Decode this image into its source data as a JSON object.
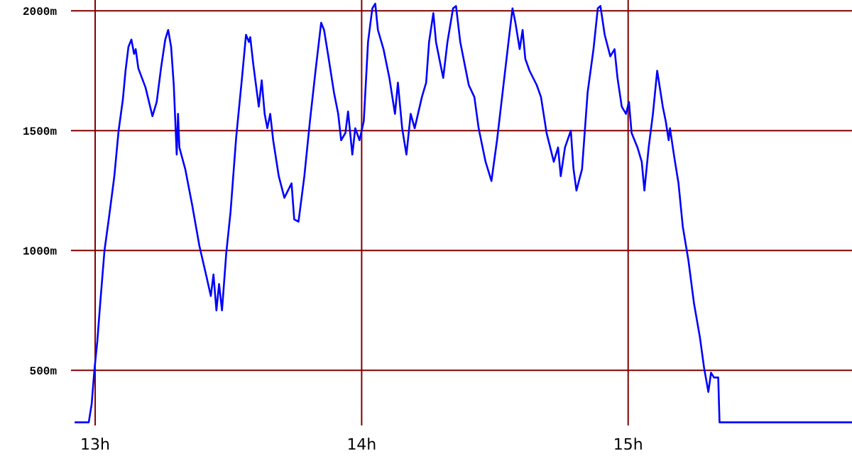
{
  "chart_data": {
    "type": "line",
    "xlim": [
      12.92,
      15.84
    ],
    "ylim": [
      270,
      2045
    ],
    "xticks": [
      {
        "value": 13,
        "label": "13h"
      },
      {
        "value": 14,
        "label": "14h"
      },
      {
        "value": 15,
        "label": "15h"
      }
    ],
    "yticks": [
      {
        "value": 500,
        "label": "500m"
      },
      {
        "value": 1000,
        "label": "1000m"
      },
      {
        "value": 1500,
        "label": "1500m"
      },
      {
        "value": 2000,
        "label": "2000m"
      }
    ],
    "grid": true,
    "marker": "none",
    "line_style": "solid",
    "series": [
      {
        "color": "#0000ff",
        "x": [
          12.923,
          12.976,
          12.987,
          12.997,
          13.008,
          13.019,
          13.035,
          13.051,
          13.072,
          13.088,
          13.104,
          13.114,
          13.125,
          13.136,
          13.146,
          13.152,
          13.162,
          13.189,
          13.215,
          13.231,
          13.247,
          13.263,
          13.274,
          13.285,
          13.295,
          13.306,
          13.311,
          13.316,
          13.338,
          13.364,
          13.391,
          13.418,
          13.434,
          13.444,
          13.455,
          13.465,
          13.476,
          13.492,
          13.508,
          13.529,
          13.551,
          13.566,
          13.577,
          13.582,
          13.593,
          13.614,
          13.625,
          13.636,
          13.646,
          13.657,
          13.668,
          13.689,
          13.71,
          13.737,
          13.747,
          13.763,
          13.785,
          13.806,
          13.827,
          13.848,
          13.859,
          13.875,
          13.896,
          13.912,
          13.923,
          13.939,
          13.949,
          13.965,
          13.976,
          13.992,
          14.008,
          14.024,
          14.04,
          14.051,
          14.061,
          14.082,
          14.104,
          14.125,
          14.136,
          14.152,
          14.168,
          14.184,
          14.199,
          14.226,
          14.242,
          14.253,
          14.269,
          14.279,
          14.295,
          14.306,
          14.322,
          14.343,
          14.354,
          14.37,
          14.402,
          14.423,
          14.439,
          14.465,
          14.487,
          14.508,
          14.529,
          14.551,
          14.566,
          14.577,
          14.593,
          14.604,
          14.614,
          14.63,
          14.657,
          14.673,
          14.694,
          14.721,
          14.737,
          14.747,
          14.763,
          14.785,
          14.795,
          14.806,
          14.827,
          14.848,
          14.87,
          14.886,
          14.896,
          14.912,
          14.933,
          14.949,
          14.96,
          14.976,
          14.992,
          15.003,
          15.013,
          15.035,
          15.051,
          15.061,
          15.077,
          15.093,
          15.109,
          15.13,
          15.141,
          15.152,
          15.157,
          15.173,
          15.189,
          15.205,
          15.226,
          15.247,
          15.269,
          15.285,
          15.301,
          15.311,
          15.322,
          15.338,
          15.343,
          15.84
        ],
        "values": [
          283,
          283,
          360,
          500,
          620,
          780,
          1000,
          1130,
          1310,
          1500,
          1630,
          1750,
          1850,
          1880,
          1820,
          1840,
          1760,
          1680,
          1560,
          1620,
          1760,
          1880,
          1920,
          1850,
          1690,
          1400,
          1570,
          1430,
          1340,
          1190,
          1020,
          890,
          810,
          900,
          750,
          860,
          750,
          990,
          1160,
          1470,
          1720,
          1900,
          1870,
          1890,
          1780,
          1600,
          1710,
          1570,
          1510,
          1570,
          1460,
          1310,
          1220,
          1280,
          1130,
          1120,
          1310,
          1540,
          1750,
          1950,
          1920,
          1810,
          1660,
          1570,
          1460,
          1490,
          1580,
          1400,
          1510,
          1460,
          1540,
          1870,
          2010,
          2030,
          1920,
          1840,
          1720,
          1570,
          1700,
          1510,
          1400,
          1570,
          1510,
          1640,
          1700,
          1870,
          1990,
          1870,
          1780,
          1720,
          1870,
          2010,
          2020,
          1870,
          1690,
          1640,
          1510,
          1370,
          1290,
          1460,
          1660,
          1870,
          2010,
          1950,
          1840,
          1920,
          1800,
          1750,
          1690,
          1640,
          1490,
          1370,
          1430,
          1310,
          1430,
          1500,
          1340,
          1250,
          1340,
          1660,
          1840,
          2010,
          2020,
          1900,
          1810,
          1840,
          1720,
          1600,
          1570,
          1620,
          1490,
          1430,
          1370,
          1250,
          1430,
          1570,
          1750,
          1600,
          1540,
          1460,
          1510,
          1390,
          1280,
          1100,
          960,
          780,
          640,
          510,
          410,
          490,
          470,
          470,
          283,
          283
        ]
      }
    ]
  }
}
